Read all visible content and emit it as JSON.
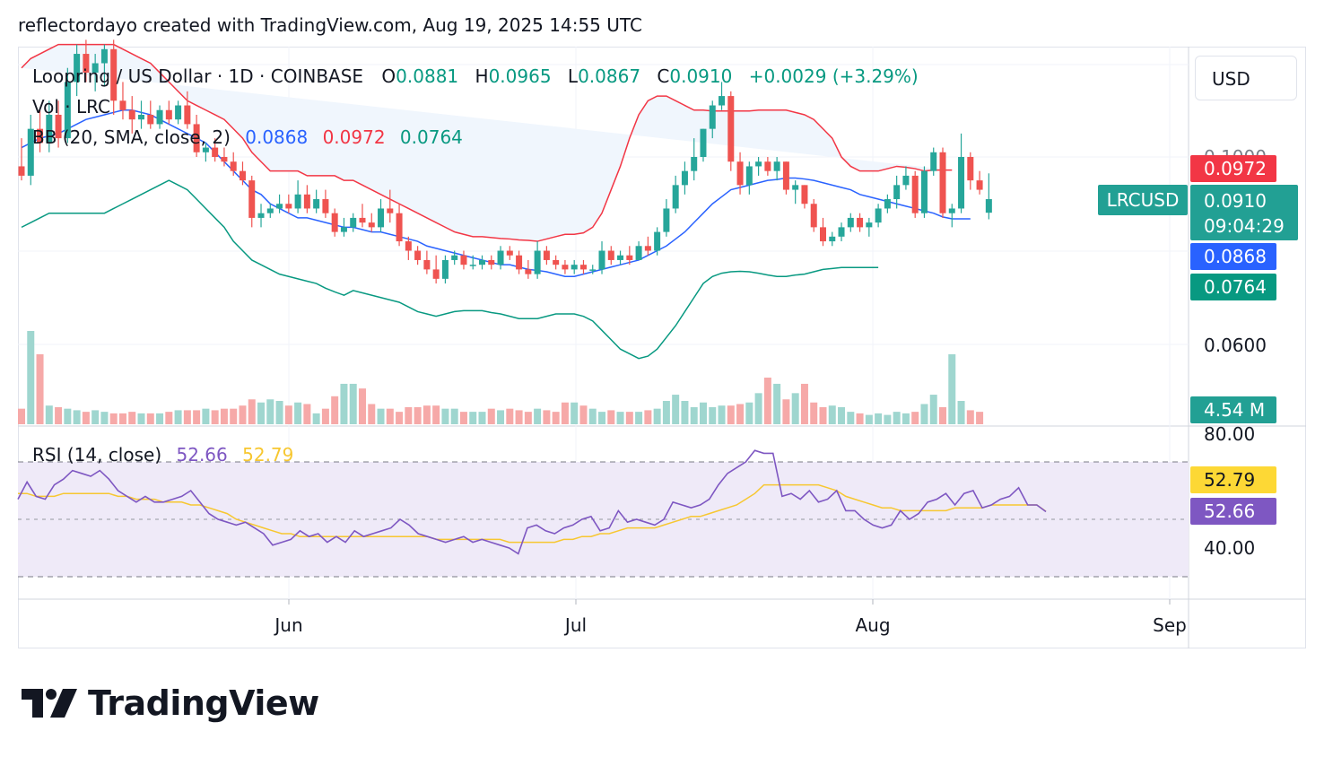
{
  "header": {
    "text": "reflectordayo created with TradingView.com, Aug 19, 2025 14:55 UTC"
  },
  "symbol_legend": {
    "name": "Loopring / US Dollar · 1D · COINBASE",
    "o_label": "O",
    "o_value": "0.0881",
    "h_label": "H",
    "h_value": "0.0965",
    "l_label": "L",
    "l_value": "0.0867",
    "c_label": "C",
    "c_value": "0.0910",
    "change": "+0.0029 (+3.29%)"
  },
  "vol_legend": {
    "label": "Vol · LRC"
  },
  "bb_legend": {
    "label": "BB (20, SMA, close, 2)",
    "basis": "0.0868",
    "upper": "0.0972",
    "lower": "0.0764"
  },
  "rsi_legend": {
    "label": "RSI (14, close)",
    "rsi": "52.66",
    "ma": "52.79"
  },
  "currency_button": "USD",
  "price_axis": {
    "labels": [
      "0.1000",
      "0.0600"
    ],
    "partial_label": "0.1000"
  },
  "rsi_axis": {
    "labels": [
      "80.00",
      "40.00"
    ]
  },
  "tags": {
    "upper": "0.0972",
    "symbol": "LRCUSD",
    "last": "0.0910",
    "countdown": "09:04:29",
    "basis": "0.0868",
    "lower": "0.0764",
    "volume": "4.54 M",
    "rsi_ma": "52.79",
    "rsi": "52.66"
  },
  "x_axis": {
    "labels": [
      "Jun",
      "Jul",
      "Aug",
      "Sep"
    ]
  },
  "logo": {
    "text": "TradingView"
  },
  "colors": {
    "up": "#26a69a",
    "down": "#ef5350",
    "basis": "#2962ff",
    "upper": "#f23645",
    "lower": "#089981",
    "bb_fill": "#f0f6fd",
    "rsi": "#7e57c2",
    "rsi_ma": "#f7c730",
    "rsi_band": "#efeaf8",
    "vol_up": "#9fd6cf",
    "vol_down": "#f6a9a8",
    "tag_symbol": "#22a094",
    "tag_basis": "#2962ff",
    "tag_lower": "#089981",
    "tag_upper": "#f23645",
    "tag_rsi_ma": "#fdd835",
    "tag_rsi": "#7e57c2"
  },
  "chart_data": {
    "type": "candlestick",
    "title": "Loopring / US Dollar · 1D · COINBASE",
    "x_range": [
      "2025-05-01",
      "2025-09-01"
    ],
    "price_range": [
      0.05,
      0.125
    ],
    "rsi_range": [
      30,
      85
    ],
    "rsi_bands": [
      70,
      30
    ],
    "candles": [
      {
        "o": 0.098,
        "h": 0.104,
        "l": 0.095,
        "c": 0.096
      },
      {
        "o": 0.096,
        "h": 0.109,
        "l": 0.094,
        "c": 0.106
      },
      {
        "o": 0.106,
        "h": 0.11,
        "l": 0.101,
        "c": 0.103
      },
      {
        "o": 0.103,
        "h": 0.112,
        "l": 0.101,
        "c": 0.109
      },
      {
        "o": 0.109,
        "h": 0.112,
        "l": 0.102,
        "c": 0.104
      },
      {
        "o": 0.104,
        "h": 0.119,
        "l": 0.103,
        "c": 0.116
      },
      {
        "o": 0.116,
        "h": 0.124,
        "l": 0.113,
        "c": 0.122
      },
      {
        "o": 0.122,
        "h": 0.125,
        "l": 0.116,
        "c": 0.118
      },
      {
        "o": 0.118,
        "h": 0.122,
        "l": 0.114,
        "c": 0.12
      },
      {
        "o": 0.12,
        "h": 0.124,
        "l": 0.115,
        "c": 0.123
      },
      {
        "o": 0.123,
        "h": 0.125,
        "l": 0.109,
        "c": 0.112
      },
      {
        "o": 0.112,
        "h": 0.116,
        "l": 0.108,
        "c": 0.11
      },
      {
        "o": 0.11,
        "h": 0.113,
        "l": 0.105,
        "c": 0.108
      },
      {
        "o": 0.108,
        "h": 0.112,
        "l": 0.106,
        "c": 0.109
      },
      {
        "o": 0.109,
        "h": 0.112,
        "l": 0.106,
        "c": 0.107
      },
      {
        "o": 0.107,
        "h": 0.111,
        "l": 0.106,
        "c": 0.11
      },
      {
        "o": 0.11,
        "h": 0.112,
        "l": 0.107,
        "c": 0.108
      },
      {
        "o": 0.108,
        "h": 0.112,
        "l": 0.107,
        "c": 0.111
      },
      {
        "o": 0.111,
        "h": 0.114,
        "l": 0.106,
        "c": 0.107
      },
      {
        "o": 0.107,
        "h": 0.109,
        "l": 0.1,
        "c": 0.101
      },
      {
        "o": 0.101,
        "h": 0.103,
        "l": 0.099,
        "c": 0.102
      },
      {
        "o": 0.102,
        "h": 0.104,
        "l": 0.099,
        "c": 0.1
      },
      {
        "o": 0.1,
        "h": 0.102,
        "l": 0.098,
        "c": 0.099
      },
      {
        "o": 0.099,
        "h": 0.101,
        "l": 0.096,
        "c": 0.097
      },
      {
        "o": 0.097,
        "h": 0.099,
        "l": 0.094,
        "c": 0.095
      },
      {
        "o": 0.095,
        "h": 0.096,
        "l": 0.085,
        "c": 0.087
      },
      {
        "o": 0.087,
        "h": 0.09,
        "l": 0.085,
        "c": 0.088
      },
      {
        "o": 0.088,
        "h": 0.09,
        "l": 0.087,
        "c": 0.089
      },
      {
        "o": 0.089,
        "h": 0.092,
        "l": 0.088,
        "c": 0.09
      },
      {
        "o": 0.09,
        "h": 0.092,
        "l": 0.088,
        "c": 0.089
      },
      {
        "o": 0.089,
        "h": 0.095,
        "l": 0.088,
        "c": 0.092
      },
      {
        "o": 0.092,
        "h": 0.094,
        "l": 0.088,
        "c": 0.089
      },
      {
        "o": 0.089,
        "h": 0.093,
        "l": 0.088,
        "c": 0.091
      },
      {
        "o": 0.091,
        "h": 0.093,
        "l": 0.087,
        "c": 0.088
      },
      {
        "o": 0.088,
        "h": 0.089,
        "l": 0.083,
        "c": 0.084
      },
      {
        "o": 0.084,
        "h": 0.087,
        "l": 0.083,
        "c": 0.085
      },
      {
        "o": 0.085,
        "h": 0.088,
        "l": 0.084,
        "c": 0.087
      },
      {
        "o": 0.087,
        "h": 0.09,
        "l": 0.085,
        "c": 0.086
      },
      {
        "o": 0.086,
        "h": 0.088,
        "l": 0.084,
        "c": 0.085
      },
      {
        "o": 0.085,
        "h": 0.091,
        "l": 0.084,
        "c": 0.089
      },
      {
        "o": 0.089,
        "h": 0.093,
        "l": 0.086,
        "c": 0.088
      },
      {
        "o": 0.088,
        "h": 0.09,
        "l": 0.081,
        "c": 0.082
      },
      {
        "o": 0.082,
        "h": 0.083,
        "l": 0.078,
        "c": 0.08
      },
      {
        "o": 0.08,
        "h": 0.081,
        "l": 0.077,
        "c": 0.078
      },
      {
        "o": 0.078,
        "h": 0.08,
        "l": 0.075,
        "c": 0.076
      },
      {
        "o": 0.076,
        "h": 0.079,
        "l": 0.073,
        "c": 0.074
      },
      {
        "o": 0.074,
        "h": 0.079,
        "l": 0.073,
        "c": 0.078
      },
      {
        "o": 0.078,
        "h": 0.08,
        "l": 0.077,
        "c": 0.079
      },
      {
        "o": 0.079,
        "h": 0.08,
        "l": 0.076,
        "c": 0.077
      },
      {
        "o": 0.077,
        "h": 0.079,
        "l": 0.076,
        "c": 0.077
      },
      {
        "o": 0.077,
        "h": 0.079,
        "l": 0.076,
        "c": 0.078
      },
      {
        "o": 0.078,
        "h": 0.079,
        "l": 0.076,
        "c": 0.077
      },
      {
        "o": 0.077,
        "h": 0.081,
        "l": 0.076,
        "c": 0.08
      },
      {
        "o": 0.08,
        "h": 0.081,
        "l": 0.078,
        "c": 0.079
      },
      {
        "o": 0.079,
        "h": 0.08,
        "l": 0.075,
        "c": 0.076
      },
      {
        "o": 0.076,
        "h": 0.078,
        "l": 0.074,
        "c": 0.075
      },
      {
        "o": 0.075,
        "h": 0.082,
        "l": 0.074,
        "c": 0.08
      },
      {
        "o": 0.08,
        "h": 0.081,
        "l": 0.077,
        "c": 0.078
      },
      {
        "o": 0.078,
        "h": 0.079,
        "l": 0.076,
        "c": 0.077
      },
      {
        "o": 0.077,
        "h": 0.078,
        "l": 0.075,
        "c": 0.076
      },
      {
        "o": 0.076,
        "h": 0.078,
        "l": 0.075,
        "c": 0.077
      },
      {
        "o": 0.077,
        "h": 0.078,
        "l": 0.075,
        "c": 0.076
      },
      {
        "o": 0.076,
        "h": 0.077,
        "l": 0.075,
        "c": 0.076
      },
      {
        "o": 0.076,
        "h": 0.082,
        "l": 0.075,
        "c": 0.08
      },
      {
        "o": 0.08,
        "h": 0.081,
        "l": 0.077,
        "c": 0.078
      },
      {
        "o": 0.078,
        "h": 0.08,
        "l": 0.077,
        "c": 0.079
      },
      {
        "o": 0.079,
        "h": 0.081,
        "l": 0.077,
        "c": 0.078
      },
      {
        "o": 0.078,
        "h": 0.082,
        "l": 0.078,
        "c": 0.081
      },
      {
        "o": 0.081,
        "h": 0.083,
        "l": 0.079,
        "c": 0.08
      },
      {
        "o": 0.08,
        "h": 0.085,
        "l": 0.079,
        "c": 0.084
      },
      {
        "o": 0.084,
        "h": 0.091,
        "l": 0.083,
        "c": 0.089
      },
      {
        "o": 0.089,
        "h": 0.096,
        "l": 0.088,
        "c": 0.094
      },
      {
        "o": 0.094,
        "h": 0.099,
        "l": 0.092,
        "c": 0.097
      },
      {
        "o": 0.097,
        "h": 0.104,
        "l": 0.095,
        "c": 0.1
      },
      {
        "o": 0.1,
        "h": 0.106,
        "l": 0.099,
        "c": 0.106
      },
      {
        "o": 0.106,
        "h": 0.112,
        "l": 0.104,
        "c": 0.111
      },
      {
        "o": 0.111,
        "h": 0.116,
        "l": 0.11,
        "c": 0.113
      },
      {
        "o": 0.113,
        "h": 0.114,
        "l": 0.097,
        "c": 0.099
      },
      {
        "o": 0.099,
        "h": 0.101,
        "l": 0.092,
        "c": 0.094
      },
      {
        "o": 0.094,
        "h": 0.099,
        "l": 0.092,
        "c": 0.098
      },
      {
        "o": 0.098,
        "h": 0.1,
        "l": 0.096,
        "c": 0.099
      },
      {
        "o": 0.099,
        "h": 0.1,
        "l": 0.096,
        "c": 0.097
      },
      {
        "o": 0.097,
        "h": 0.1,
        "l": 0.095,
        "c": 0.099
      },
      {
        "o": 0.099,
        "h": 0.099,
        "l": 0.092,
        "c": 0.093
      },
      {
        "o": 0.093,
        "h": 0.095,
        "l": 0.09,
        "c": 0.094
      },
      {
        "o": 0.094,
        "h": 0.094,
        "l": 0.089,
        "c": 0.09
      },
      {
        "o": 0.09,
        "h": 0.091,
        "l": 0.084,
        "c": 0.085
      },
      {
        "o": 0.085,
        "h": 0.087,
        "l": 0.081,
        "c": 0.082
      },
      {
        "o": 0.082,
        "h": 0.084,
        "l": 0.081,
        "c": 0.083
      },
      {
        "o": 0.083,
        "h": 0.086,
        "l": 0.082,
        "c": 0.085
      },
      {
        "o": 0.085,
        "h": 0.088,
        "l": 0.084,
        "c": 0.087
      },
      {
        "o": 0.087,
        "h": 0.088,
        "l": 0.084,
        "c": 0.085
      },
      {
        "o": 0.085,
        "h": 0.087,
        "l": 0.083,
        "c": 0.086
      },
      {
        "o": 0.086,
        "h": 0.09,
        "l": 0.085,
        "c": 0.089
      },
      {
        "o": 0.089,
        "h": 0.092,
        "l": 0.088,
        "c": 0.091
      },
      {
        "o": 0.091,
        "h": 0.096,
        "l": 0.089,
        "c": 0.094
      },
      {
        "o": 0.094,
        "h": 0.098,
        "l": 0.093,
        "c": 0.096
      },
      {
        "o": 0.096,
        "h": 0.097,
        "l": 0.087,
        "c": 0.088
      },
      {
        "o": 0.088,
        "h": 0.098,
        "l": 0.087,
        "c": 0.097
      },
      {
        "o": 0.097,
        "h": 0.102,
        "l": 0.096,
        "c": 0.101
      },
      {
        "o": 0.101,
        "h": 0.102,
        "l": 0.087,
        "c": 0.088
      },
      {
        "o": 0.088,
        "h": 0.09,
        "l": 0.085,
        "c": 0.089
      },
      {
        "o": 0.089,
        "h": 0.105,
        "l": 0.088,
        "c": 0.1
      },
      {
        "o": 0.1,
        "h": 0.101,
        "l": 0.093,
        "c": 0.095
      },
      {
        "o": 0.095,
        "h": 0.097,
        "l": 0.092,
        "c": 0.093
      },
      {
        "o": 0.0881,
        "h": 0.0965,
        "l": 0.0867,
        "c": 0.091
      }
    ],
    "volume": [
      1.0,
      6.0,
      4.5,
      1.2,
      1.1,
      1.0,
      0.9,
      0.8,
      0.9,
      0.8,
      0.7,
      0.7,
      0.8,
      0.7,
      0.7,
      0.7,
      0.8,
      0.9,
      0.9,
      0.9,
      1.0,
      0.9,
      1.0,
      1.0,
      1.2,
      1.6,
      1.4,
      1.6,
      1.5,
      1.2,
      1.4,
      1.3,
      0.7,
      1.0,
      1.8,
      2.6,
      2.6,
      2.3,
      1.3,
      1.0,
      1.0,
      0.8,
      1.1,
      1.1,
      1.2,
      1.2,
      1.0,
      1.0,
      0.8,
      0.8,
      0.8,
      1.0,
      0.9,
      1.0,
      0.9,
      0.8,
      1.0,
      0.9,
      0.8,
      1.4,
      1.4,
      1.2,
      1.0,
      0.8,
      0.9,
      0.8,
      0.8,
      0.8,
      0.9,
      1.0,
      1.5,
      1.9,
      1.5,
      1.1,
      1.4,
      1.1,
      1.2,
      1.2,
      1.3,
      1.4,
      2.0,
      3.0,
      2.6,
      1.6,
      2.0,
      2.6,
      1.4,
      1.1,
      1.2,
      1.1,
      0.8,
      0.7,
      0.6,
      0.7,
      0.6,
      0.8,
      0.7,
      0.8,
      1.3,
      1.9,
      1.1,
      4.5,
      1.5,
      0.9,
      0.8
    ],
    "bb_basis": [
      0.102,
      0.103,
      0.104,
      0.1045,
      0.105,
      0.106,
      0.107,
      0.108,
      0.1085,
      0.109,
      0.1095,
      0.11,
      0.11,
      0.1095,
      0.109,
      0.108,
      0.107,
      0.106,
      0.105,
      0.104,
      0.103,
      0.101,
      0.099,
      0.097,
      0.095,
      0.093,
      0.092,
      0.09,
      0.089,
      0.088,
      0.087,
      0.087,
      0.0865,
      0.086,
      0.0855,
      0.085,
      0.085,
      0.0845,
      0.084,
      0.084,
      0.0835,
      0.083,
      0.0825,
      0.082,
      0.081,
      0.0805,
      0.08,
      0.0795,
      0.079,
      0.0785,
      0.078,
      0.0775,
      0.077,
      0.077,
      0.0765,
      0.076,
      0.0758,
      0.0755,
      0.075,
      0.0745,
      0.0745,
      0.075,
      0.0755,
      0.076,
      0.0765,
      0.077,
      0.0775,
      0.078,
      0.079,
      0.08,
      0.081,
      0.0825,
      0.084,
      0.086,
      0.088,
      0.09,
      0.0915,
      0.093,
      0.0935,
      0.094,
      0.0945,
      0.095,
      0.0952,
      0.0955,
      0.0955,
      0.0953,
      0.095,
      0.0945,
      0.094,
      0.0935,
      0.093,
      0.092,
      0.0915,
      0.091,
      0.0905,
      0.09,
      0.0895,
      0.089,
      0.0885,
      0.088,
      0.0872,
      0.0868,
      0.0868,
      0.0868
    ],
    "bb_upper": [
      0.119,
      0.121,
      0.122,
      0.123,
      0.124,
      0.124,
      0.124,
      0.124,
      0.124,
      0.124,
      0.124,
      0.123,
      0.122,
      0.121,
      0.12,
      0.118,
      0.116,
      0.114,
      0.112,
      0.111,
      0.11,
      0.109,
      0.108,
      0.106,
      0.104,
      0.101,
      0.099,
      0.097,
      0.097,
      0.097,
      0.097,
      0.096,
      0.096,
      0.096,
      0.096,
      0.095,
      0.095,
      0.094,
      0.093,
      0.092,
      0.091,
      0.09,
      0.089,
      0.088,
      0.087,
      0.086,
      0.085,
      0.084,
      0.0835,
      0.083,
      0.083,
      0.0828,
      0.0826,
      0.0825,
      0.0823,
      0.0822,
      0.082,
      0.0825,
      0.083,
      0.0835,
      0.0835,
      0.0838,
      0.085,
      0.088,
      0.093,
      0.098,
      0.104,
      0.109,
      0.112,
      0.113,
      0.113,
      0.112,
      0.111,
      0.11,
      0.11,
      0.1098,
      0.1098,
      0.1098,
      0.1098,
      0.1098,
      0.11,
      0.11,
      0.11,
      0.11,
      0.1095,
      0.109,
      0.108,
      0.106,
      0.104,
      0.1,
      0.098,
      0.097,
      0.097,
      0.097,
      0.0975,
      0.098,
      0.0978,
      0.0975,
      0.097,
      0.0972,
      0.0972,
      0.0972
    ],
    "bb_lower": [
      0.085,
      0.086,
      0.087,
      0.088,
      0.088,
      0.088,
      0.088,
      0.088,
      0.088,
      0.088,
      0.089,
      0.09,
      0.091,
      0.092,
      0.093,
      0.094,
      0.095,
      0.094,
      0.093,
      0.091,
      0.089,
      0.087,
      0.085,
      0.082,
      0.08,
      0.078,
      0.077,
      0.076,
      0.075,
      0.0745,
      0.074,
      0.0735,
      0.073,
      0.072,
      0.0712,
      0.0705,
      0.0715,
      0.071,
      0.0705,
      0.07,
      0.0695,
      0.069,
      0.068,
      0.067,
      0.0665,
      0.066,
      0.0665,
      0.067,
      0.0672,
      0.0672,
      0.0672,
      0.0668,
      0.0665,
      0.066,
      0.0655,
      0.0655,
      0.0655,
      0.066,
      0.0665,
      0.0665,
      0.0665,
      0.066,
      0.065,
      0.063,
      0.061,
      0.059,
      0.058,
      0.057,
      0.0575,
      0.059,
      0.0615,
      0.064,
      0.067,
      0.07,
      0.073,
      0.0745,
      0.0752,
      0.0755,
      0.0756,
      0.0755,
      0.0752,
      0.0748,
      0.0745,
      0.0745,
      0.0748,
      0.075,
      0.0755,
      0.076,
      0.0762,
      0.0764,
      0.0764,
      0.0764,
      0.0764,
      0.0764
    ],
    "rsi": [
      57,
      63,
      58,
      57,
      62,
      64,
      67,
      66,
      65,
      67,
      64,
      60,
      58,
      56,
      58,
      56,
      56,
      57,
      58,
      60,
      56,
      52,
      50,
      49,
      48,
      49,
      47,
      45,
      41,
      42,
      43,
      46,
      44,
      45,
      42,
      44,
      42,
      46,
      44,
      45,
      46,
      47,
      50,
      48,
      45,
      44,
      43,
      42,
      43,
      44,
      42,
      43,
      42,
      41,
      40,
      38,
      47,
      48,
      46,
      45,
      47,
      48,
      50,
      51,
      46,
      47,
      53,
      49,
      50,
      49,
      48,
      50,
      56,
      55,
      54,
      55,
      57,
      62,
      66,
      68,
      70,
      74,
      73,
      73,
      58,
      59,
      57,
      60,
      56,
      57,
      60,
      53,
      53,
      50,
      48,
      47,
      48,
      53,
      50,
      52,
      56,
      57,
      59,
      55,
      59,
      60,
      54,
      55,
      57,
      58,
      61,
      55,
      55,
      52.66
    ],
    "rsi_ma": [
      59,
      59,
      58,
      58,
      58,
      59,
      59,
      59,
      59,
      59,
      59,
      58,
      58,
      57,
      57,
      57,
      56,
      56,
      56,
      55,
      55,
      54,
      53,
      52,
      50,
      49,
      48,
      47,
      46,
      45,
      45,
      44,
      44,
      44,
      44,
      44,
      44,
      44,
      44,
      44,
      44,
      44,
      44,
      44,
      44,
      44,
      43,
      43,
      43,
      43,
      43,
      43,
      43,
      43,
      42,
      42,
      42,
      42,
      42,
      42,
      43,
      43,
      44,
      44,
      45,
      45,
      46,
      47,
      47,
      47,
      47,
      48,
      49,
      50,
      51,
      51,
      52,
      53,
      54,
      55,
      57,
      59,
      62,
      62,
      62,
      62,
      62,
      62,
      62,
      61,
      60,
      58,
      57,
      56,
      55,
      54,
      54,
      53,
      53,
      53,
      53,
      53,
      53,
      54,
      54,
      54,
      54,
      55,
      55,
      55,
      55,
      55,
      55,
      52.79
    ]
  }
}
